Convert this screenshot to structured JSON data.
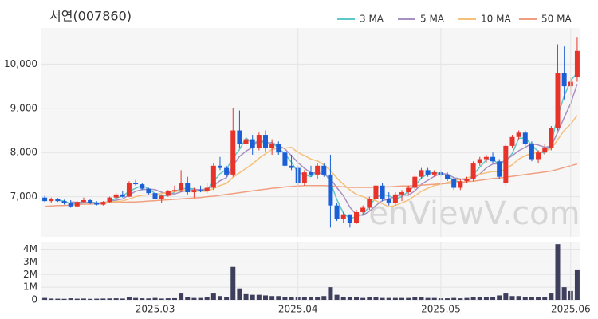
{
  "chart_data": [
    {
      "type": "candlestick",
      "title": "서연(007860)",
      "watermark": "enViewV.com",
      "up_color": "#e8332a",
      "down_color": "#1a5fd6",
      "open": [
        6980,
        6900,
        6950,
        6900,
        6850,
        6780,
        6880,
        6920,
        6850,
        6820,
        6880,
        6980,
        7050,
        7000,
        7300,
        7280,
        7180,
        7080,
        6950,
        7020,
        7120,
        7150,
        7300,
        7100,
        7150,
        7120,
        7200,
        7700,
        7650,
        7500,
        8500,
        8200,
        8300,
        8100,
        8400,
        8100,
        8200,
        8000,
        7700,
        7650,
        7300,
        7550,
        7500,
        7700,
        7500,
        6800,
        6500,
        6600,
        6400,
        6650,
        6750,
        6950,
        7250,
        6950,
        6850,
        7050,
        7100,
        7200,
        7450,
        7600,
        7500,
        7550,
        7500,
        7400,
        7200,
        7350,
        7400,
        7750,
        7850,
        7900,
        7800,
        7300,
        8150,
        8350,
        8450,
        8200,
        7850,
        8000,
        8100,
        8550,
        9800,
        9500,
        9700
      ],
      "high": [
        7020,
        6980,
        6970,
        6930,
        6920,
        6900,
        6980,
        6950,
        6900,
        6900,
        7000,
        7080,
        7120,
        7350,
        7380,
        7300,
        7200,
        7100,
        7050,
        7150,
        7250,
        7600,
        7450,
        7200,
        7250,
        7300,
        7750,
        7900,
        7700,
        9000,
        8950,
        8400,
        8400,
        8450,
        8500,
        8300,
        8250,
        8050,
        7950,
        7700,
        7600,
        7700,
        7750,
        7750,
        7950,
        6850,
        6650,
        6600,
        6700,
        6800,
        7000,
        7300,
        7300,
        7100,
        7100,
        7150,
        7250,
        7500,
        7650,
        7650,
        7600,
        7600,
        7550,
        7450,
        7400,
        7450,
        7800,
        7900,
        7950,
        8000,
        7850,
        8200,
        8400,
        8500,
        8500,
        8250,
        8050,
        8200,
        8600,
        10450,
        10400,
        9700,
        10600
      ],
      "low": [
        6880,
        6850,
        6880,
        6820,
        6750,
        6760,
        6860,
        6830,
        6800,
        6800,
        6860,
        6950,
        6980,
        6990,
        7250,
        7150,
        7050,
        6900,
        6850,
        7000,
        7100,
        7100,
        7050,
        6980,
        7100,
        7080,
        7150,
        7600,
        7450,
        7450,
        8100,
        8000,
        7950,
        8050,
        8000,
        7950,
        7950,
        7650,
        7600,
        7250,
        7250,
        7450,
        7400,
        7450,
        6300,
        6450,
        6400,
        6300,
        6380,
        6600,
        6700,
        6900,
        6900,
        6800,
        6800,
        6900,
        7050,
        7150,
        7400,
        7450,
        7450,
        7450,
        7350,
        7150,
        7150,
        7300,
        7350,
        7700,
        7750,
        7750,
        7400,
        7250,
        8100,
        8300,
        8150,
        7800,
        7750,
        7950,
        8050,
        8500,
        9200,
        9300,
        9600
      ],
      "close": [
        6900,
        6950,
        6900,
        6850,
        6780,
        6880,
        6920,
        6850,
        6820,
        6880,
        6980,
        7050,
        7000,
        7300,
        7280,
        7180,
        7080,
        6950,
        7020,
        7120,
        7150,
        7300,
        7100,
        7150,
        7120,
        7200,
        7700,
        7650,
        7500,
        8500,
        8200,
        8300,
        8100,
        8400,
        8100,
        8200,
        8000,
        7700,
        7650,
        7300,
        7550,
        7500,
        7700,
        7500,
        6800,
        6500,
        6600,
        6400,
        6650,
        6750,
        6950,
        7250,
        6950,
        6850,
        7050,
        7100,
        7200,
        7450,
        7600,
        7500,
        7550,
        7500,
        7400,
        7200,
        7350,
        7400,
        7750,
        7850,
        7900,
        7800,
        7450,
        8150,
        8350,
        8450,
        8200,
        7850,
        8000,
        8100,
        8550,
        9800,
        9500,
        9600,
        10300
      ],
      "series": [
        {
          "name": "3 MA",
          "color": "#5ec8c8",
          "values": [
            null,
            null,
            6920,
            6900,
            6840,
            6840,
            6860,
            6880,
            6860,
            6850,
            6890,
            6970,
            7010,
            7120,
            7190,
            7250,
            7180,
            7070,
            7020,
            7030,
            7100,
            7190,
            7180,
            7180,
            7120,
            7160,
            7340,
            7520,
            7620,
            7880,
            8070,
            8330,
            8200,
            8270,
            8200,
            8230,
            8100,
            7970,
            7780,
            7550,
            7500,
            7450,
            7580,
            7570,
            7330,
            6930,
            6630,
            6500,
            6550,
            6600,
            6780,
            6980,
            7050,
            7020,
            6950,
            7000,
            7120,
            7250,
            7420,
            7520,
            7550,
            7520,
            7480,
            7370,
            7320,
            7320,
            7500,
            7670,
            7830,
            7850,
            7720,
            7800,
            7980,
            8320,
            8330,
            8170,
            8020,
            7980,
            8220,
            8820,
            9280,
            9630,
            9800
          ]
        },
        {
          "name": "5 MA",
          "color": "#a890c0",
          "values": [
            null,
            null,
            null,
            null,
            6880,
            6870,
            6870,
            6860,
            6850,
            6870,
            6890,
            6920,
            6950,
            7040,
            7120,
            7160,
            7170,
            7160,
            7100,
            7070,
            7060,
            7110,
            7140,
            7160,
            7160,
            7170,
            7250,
            7360,
            7430,
            7710,
            7910,
            8030,
            8120,
            8300,
            8220,
            8220,
            8160,
            8080,
            7930,
            7770,
            7640,
            7540,
            7540,
            7510,
            7410,
            7200,
            7020,
            6760,
            6590,
            6580,
            6670,
            6800,
            6910,
            6950,
            7010,
            7040,
            7030,
            7130,
            7280,
            7370,
            7460,
            7520,
            7510,
            7430,
            7400,
            7370,
            7420,
            7510,
            7650,
            7740,
            7750,
            7830,
            7930,
            8040,
            8120,
            8200,
            8170,
            8120,
            8140,
            8460,
            8790,
            9110,
            9550
          ]
        },
        {
          "name": "10 MA",
          "color": "#f5c07a",
          "values": [
            null,
            null,
            null,
            null,
            null,
            null,
            null,
            null,
            null,
            6870,
            6880,
            6890,
            6900,
            6950,
            7000,
            7030,
            7040,
            7050,
            7070,
            7100,
            7110,
            7140,
            7150,
            7130,
            7120,
            7120,
            7180,
            7250,
            7300,
            7440,
            7540,
            7640,
            7740,
            7870,
            7970,
            8070,
            8100,
            8100,
            8120,
            8000,
            7930,
            7850,
            7810,
            7720,
            7590,
            7420,
            7280,
            7150,
            7050,
            7000,
            6940,
            6910,
            6840,
            6770,
            6800,
            6860,
            6920,
            7020,
            7120,
            7190,
            7250,
            7280,
            7320,
            7360,
            7390,
            7420,
            7470,
            7510,
            7540,
            7570,
            7560,
            7630,
            7720,
            7850,
            7930,
            7980,
            8000,
            8030,
            8090,
            8290,
            8500,
            8640,
            8840
          ]
        },
        {
          "name": "50 MA",
          "color": "#f0a080",
          "values": [
            6780,
            6790,
            6800,
            6800,
            6810,
            6820,
            6830,
            6830,
            6840,
            6850,
            6860,
            6860,
            6870,
            6880,
            6880,
            6890,
            6900,
            6910,
            6920,
            6930,
            6940,
            6950,
            6960,
            6970,
            6980,
            7000,
            7010,
            7030,
            7050,
            7070,
            7090,
            7110,
            7130,
            7150,
            7170,
            7190,
            7200,
            7220,
            7230,
            7240,
            7250,
            7250,
            7250,
            7250,
            7240,
            7230,
            7220,
            7210,
            7210,
            7210,
            7210,
            7210,
            7220,
            7220,
            7230,
            7240,
            7240,
            7250,
            7260,
            7270,
            7280,
            7290,
            7300,
            7310,
            7320,
            7340,
            7350,
            7370,
            7390,
            7410,
            7420,
            7440,
            7460,
            7480,
            7500,
            7520,
            7540,
            7560,
            7580,
            7620,
            7660,
            7700,
            7740
          ]
        }
      ],
      "ylim": [
        6090,
        10820
      ],
      "yticks": [
        {
          "value": 7000,
          "label": "7,000"
        },
        {
          "value": 8000,
          "label": "8,000"
        },
        {
          "value": 9000,
          "label": "9,000"
        },
        {
          "value": 10000,
          "label": "10,000"
        }
      ],
      "grid": true
    },
    {
      "type": "bar",
      "color": "#3d3f5c",
      "categories": [
        null,
        null,
        null,
        null,
        null,
        null,
        null,
        null,
        null,
        null,
        null,
        null,
        null,
        null,
        null,
        null,
        null,
        "2025.03",
        null,
        null,
        null,
        null,
        null,
        null,
        null,
        null,
        null,
        null,
        null,
        null,
        null,
        null,
        null,
        null,
        null,
        null,
        null,
        null,
        null,
        "2025.04",
        null,
        null,
        null,
        null,
        null,
        null,
        null,
        null,
        null,
        null,
        null,
        null,
        null,
        null,
        null,
        null,
        null,
        null,
        null,
        null,
        null,
        "2025.05",
        null,
        null,
        null,
        null,
        null,
        null,
        null,
        null,
        null,
        null,
        null,
        null,
        null,
        null,
        null,
        null,
        null,
        null,
        null,
        "2025.06",
        null
      ],
      "values": [
        150000,
        100000,
        90000,
        80000,
        120000,
        90000,
        100000,
        80000,
        90000,
        100000,
        110000,
        120000,
        100000,
        200000,
        150000,
        120000,
        110000,
        150000,
        100000,
        120000,
        130000,
        500000,
        200000,
        150000,
        150000,
        200000,
        500000,
        300000,
        250000,
        2600000,
        900000,
        450000,
        400000,
        400000,
        350000,
        300000,
        300000,
        250000,
        200000,
        200000,
        200000,
        200000,
        250000,
        300000,
        1000000,
        400000,
        250000,
        200000,
        200000,
        150000,
        200000,
        250000,
        150000,
        150000,
        150000,
        150000,
        150000,
        200000,
        200000,
        150000,
        150000,
        120000,
        120000,
        150000,
        120000,
        150000,
        200000,
        200000,
        250000,
        200000,
        350000,
        500000,
        300000,
        300000,
        250000,
        200000,
        200000,
        200000,
        500000,
        4400000,
        1000000,
        700000,
        2400000
      ],
      "ylim": [
        0,
        4600000
      ],
      "yticks": [
        0,
        {
          "value": 1000000,
          "label": "1M"
        },
        {
          "value": 2000000,
          "label": "2M"
        },
        {
          "value": 3000000,
          "label": "3M"
        },
        {
          "value": 4000000,
          "label": "4M"
        }
      ],
      "grid": true
    }
  ]
}
